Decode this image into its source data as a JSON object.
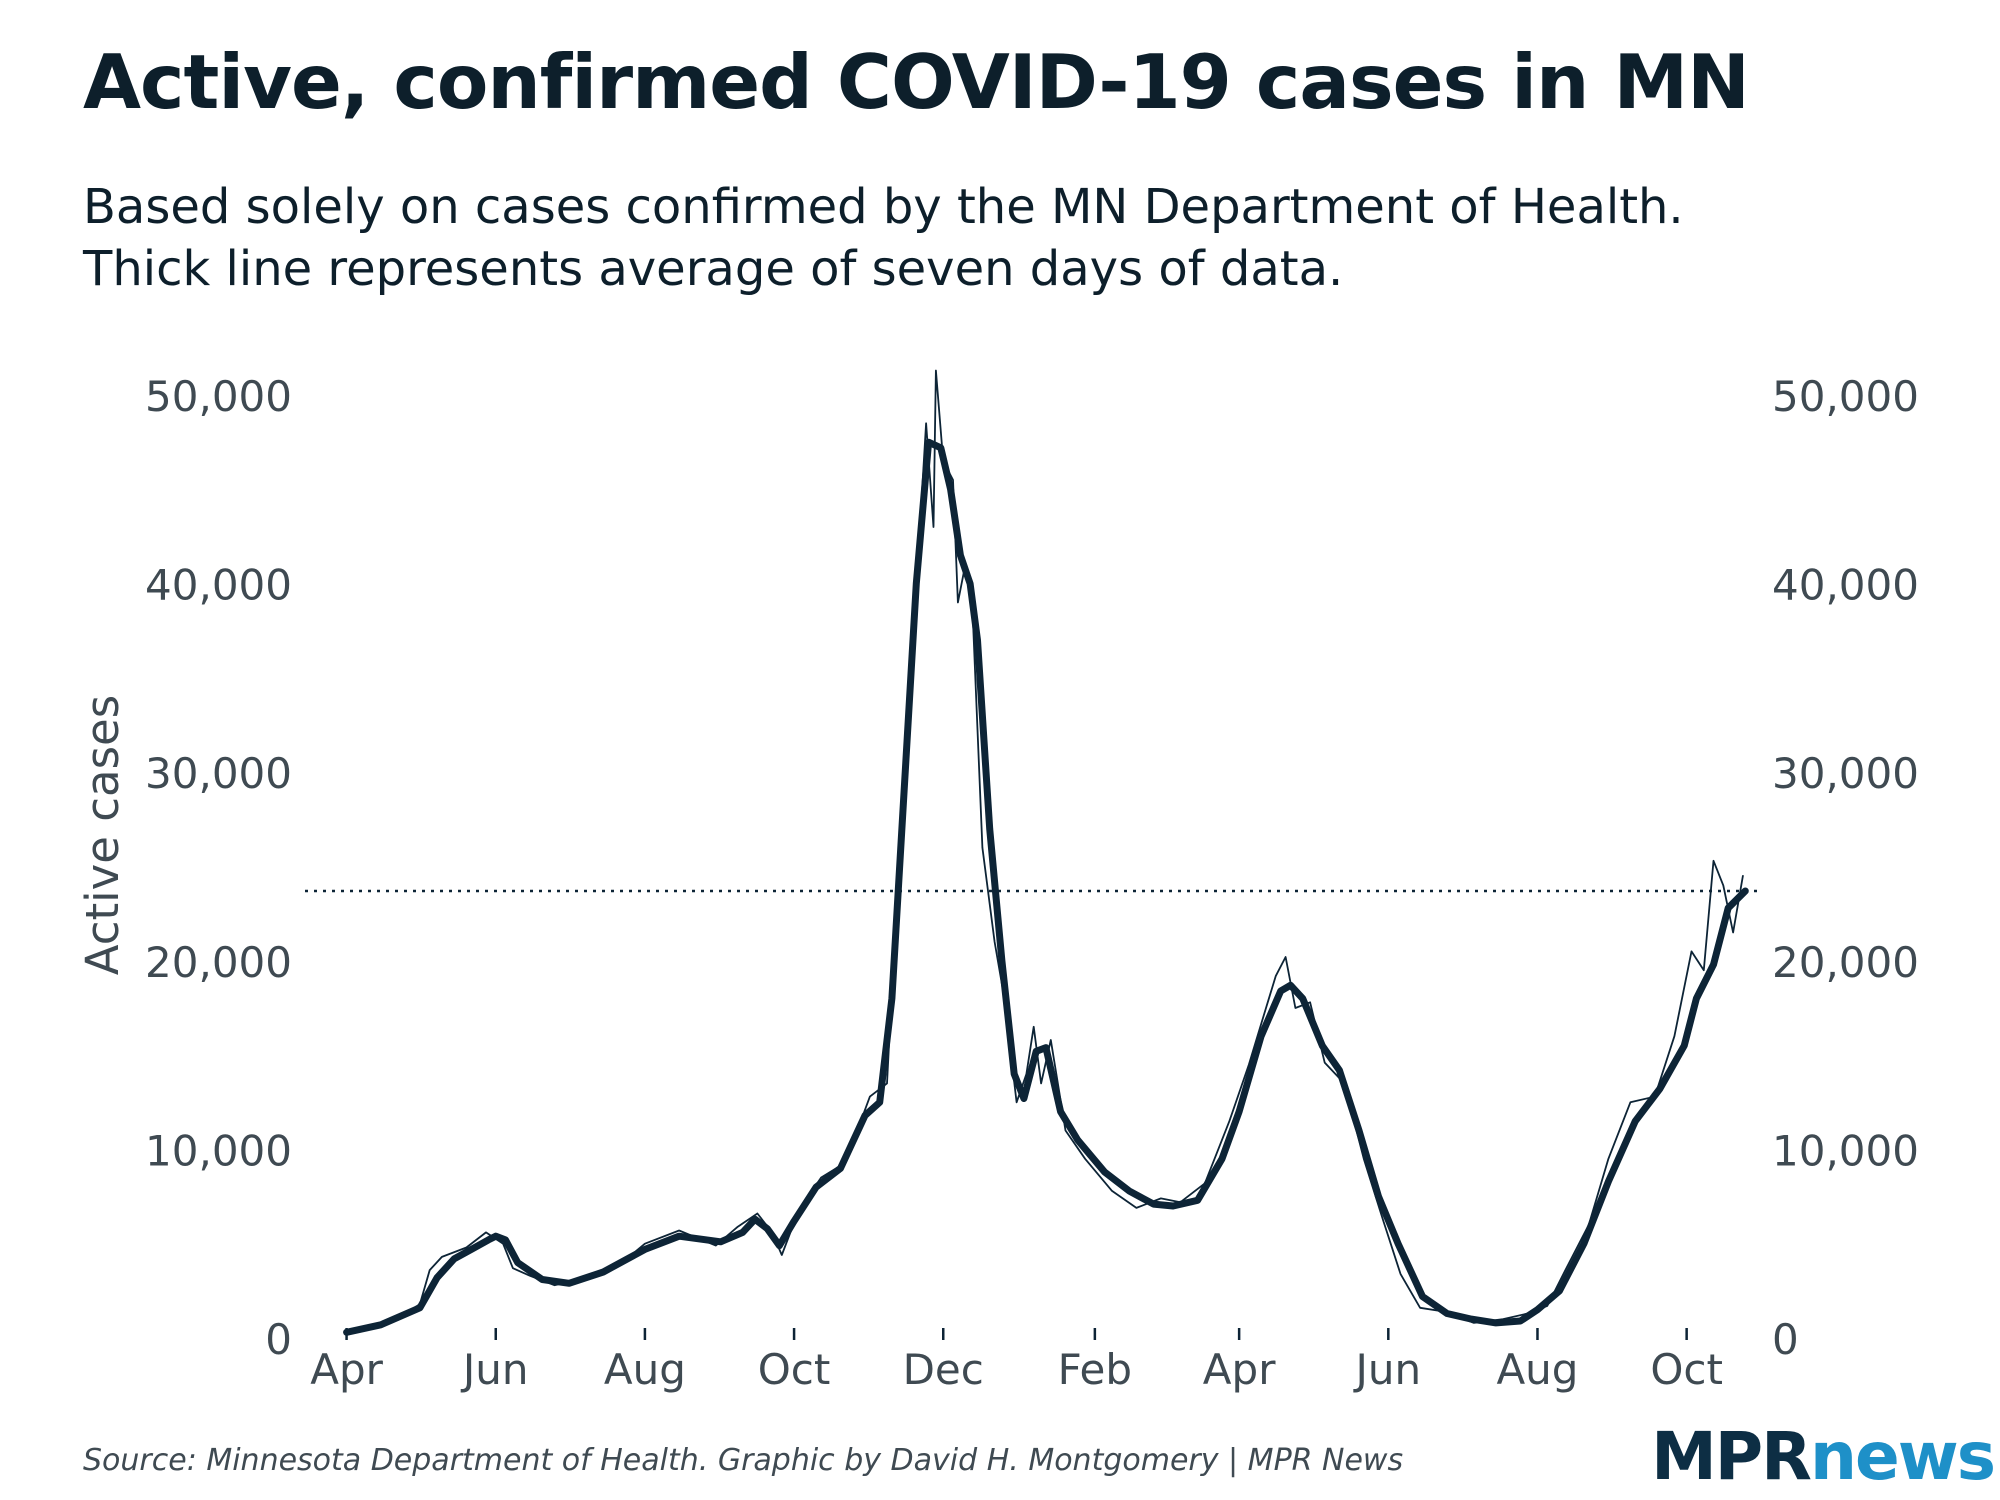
{
  "title": "Active, confirmed COVID-19 cases in MN",
  "subtitle_lines": [
    "Based solely on cases confirmed by the MN Department of Health.",
    "Thick line represents average of seven days of data."
  ],
  "source": "Source: Minnesota Department of Health. Graphic by David H. Montgomery | MPR News",
  "logo": {
    "part1": "MPR",
    "part2": "news",
    "color_part1": "#0d2e44",
    "color_part2": "#1e90c8"
  },
  "colors": {
    "line": "#0d2436",
    "text": "#0d1f2b",
    "tick_text": "#3f4a52"
  },
  "chart_data": {
    "type": "line",
    "ylabel": "Active cases",
    "ylim": [
      0,
      50000
    ],
    "yticks": [
      0,
      10000,
      20000,
      30000,
      40000,
      50000
    ],
    "ytick_labels": [
      "0",
      "10,000",
      "20,000",
      "30,000",
      "40,000",
      "50,000"
    ],
    "y_axis_sides": "both",
    "x_tick_positions": [
      "2020-04-01",
      "2020-06-01",
      "2020-08-01",
      "2020-10-01",
      "2020-12-01",
      "2021-02-01",
      "2021-04-01",
      "2021-06-01",
      "2021-08-01",
      "2021-10-01"
    ],
    "x_tick_labels": [
      "Apr",
      "Jun",
      "Aug",
      "Oct",
      "Dec",
      "Feb",
      "Apr",
      "Jun",
      "Aug",
      "Oct"
    ],
    "xlim": [
      "2020-03-15",
      "2021-10-31"
    ],
    "reference_line": {
      "y": 23700,
      "style": "dotted"
    },
    "grid": false,
    "series": [
      {
        "style": "thick",
        "points": [
          [
            "2020-04-01",
            300
          ],
          [
            "2020-04-15",
            700
          ],
          [
            "2020-05-01",
            1600
          ],
          [
            "2020-05-08",
            3200
          ],
          [
            "2020-05-15",
            4200
          ],
          [
            "2020-05-22",
            4700
          ],
          [
            "2020-05-29",
            5200
          ],
          [
            "2020-06-01",
            5400
          ],
          [
            "2020-06-05",
            5200
          ],
          [
            "2020-06-10",
            4000
          ],
          [
            "2020-06-20",
            3100
          ],
          [
            "2020-07-01",
            2900
          ],
          [
            "2020-07-15",
            3500
          ],
          [
            "2020-08-01",
            4700
          ],
          [
            "2020-08-15",
            5400
          ],
          [
            "2020-09-01",
            5100
          ],
          [
            "2020-09-10",
            5600
          ],
          [
            "2020-09-15",
            6300
          ],
          [
            "2020-09-20",
            5800
          ],
          [
            "2020-09-25",
            4900
          ],
          [
            "2020-10-01",
            6200
          ],
          [
            "2020-10-10",
            8000
          ],
          [
            "2020-10-20",
            9000
          ],
          [
            "2020-10-30",
            11800
          ],
          [
            "2020-11-05",
            12500
          ],
          [
            "2020-11-10",
            18000
          ],
          [
            "2020-11-15",
            29000
          ],
          [
            "2020-11-20",
            40000
          ],
          [
            "2020-11-25",
            47500
          ],
          [
            "2020-11-30",
            47200
          ],
          [
            "2020-12-04",
            45000
          ],
          [
            "2020-12-08",
            41500
          ],
          [
            "2020-12-12",
            40000
          ],
          [
            "2020-12-15",
            37000
          ],
          [
            "2020-12-20",
            27000
          ],
          [
            "2020-12-25",
            20000
          ],
          [
            "2020-12-30",
            14000
          ],
          [
            "2021-01-03",
            12700
          ],
          [
            "2021-01-08",
            15200
          ],
          [
            "2021-01-12",
            15400
          ],
          [
            "2021-01-18",
            12000
          ],
          [
            "2021-01-25",
            10500
          ],
          [
            "2021-02-05",
            8800
          ],
          [
            "2021-02-15",
            7800
          ],
          [
            "2021-02-25",
            7100
          ],
          [
            "2021-03-05",
            7000
          ],
          [
            "2021-03-15",
            7300
          ],
          [
            "2021-03-25",
            9500
          ],
          [
            "2021-04-01",
            12000
          ],
          [
            "2021-04-10",
            16000
          ],
          [
            "2021-04-18",
            18400
          ],
          [
            "2021-04-22",
            18700
          ],
          [
            "2021-04-27",
            18000
          ],
          [
            "2021-05-05",
            15500
          ],
          [
            "2021-05-12",
            14200
          ],
          [
            "2021-05-20",
            11000
          ],
          [
            "2021-05-28",
            7500
          ],
          [
            "2021-06-05",
            5000
          ],
          [
            "2021-06-15",
            2200
          ],
          [
            "2021-06-25",
            1300
          ],
          [
            "2021-07-05",
            1000
          ],
          [
            "2021-07-15",
            800
          ],
          [
            "2021-07-25",
            900
          ],
          [
            "2021-08-01",
            1500
          ],
          [
            "2021-08-10",
            2500
          ],
          [
            "2021-08-20",
            5000
          ],
          [
            "2021-08-30",
            8300
          ],
          [
            "2021-09-10",
            11500
          ],
          [
            "2021-09-20",
            13200
          ],
          [
            "2021-09-30",
            15500
          ],
          [
            "2021-10-05",
            18000
          ],
          [
            "2021-10-12",
            19800
          ],
          [
            "2021-10-18",
            22800
          ],
          [
            "2021-10-25",
            23700
          ]
        ]
      },
      {
        "style": "thin",
        "points": [
          [
            "2020-04-01",
            400
          ],
          [
            "2020-04-20",
            900
          ],
          [
            "2020-05-01",
            1800
          ],
          [
            "2020-05-05",
            3600
          ],
          [
            "2020-05-10",
            4300
          ],
          [
            "2020-05-20",
            4800
          ],
          [
            "2020-05-28",
            5600
          ],
          [
            "2020-06-04",
            5000
          ],
          [
            "2020-06-08",
            3700
          ],
          [
            "2020-06-15",
            3300
          ],
          [
            "2020-06-25",
            2800
          ],
          [
            "2020-07-05",
            3100
          ],
          [
            "2020-07-20",
            3700
          ],
          [
            "2020-08-01",
            5000
          ],
          [
            "2020-08-15",
            5700
          ],
          [
            "2020-08-30",
            4900
          ],
          [
            "2020-09-08",
            5900
          ],
          [
            "2020-09-16",
            6600
          ],
          [
            "2020-09-22",
            5600
          ],
          [
            "2020-09-26",
            4400
          ],
          [
            "2020-10-03",
            6800
          ],
          [
            "2020-10-12",
            8500
          ],
          [
            "2020-10-22",
            9300
          ],
          [
            "2020-11-01",
            12800
          ],
          [
            "2020-11-08",
            13500
          ],
          [
            "2020-11-13",
            26000
          ],
          [
            "2020-11-17",
            33000
          ],
          [
            "2020-11-21",
            42000
          ],
          [
            "2020-11-24",
            48500
          ],
          [
            "2020-11-27",
            43000
          ],
          [
            "2020-11-28",
            51300
          ],
          [
            "2020-12-01",
            46500
          ],
          [
            "2020-12-05",
            45500
          ],
          [
            "2020-12-07",
            39000
          ],
          [
            "2020-12-10",
            41000
          ],
          [
            "2020-12-13",
            38500
          ],
          [
            "2020-12-17",
            26000
          ],
          [
            "2020-12-22",
            21000
          ],
          [
            "2020-12-26",
            18000
          ],
          [
            "2020-12-31",
            12500
          ],
          [
            "2021-01-04",
            14000
          ],
          [
            "2021-01-07",
            16500
          ],
          [
            "2021-01-10",
            13500
          ],
          [
            "2021-01-14",
            15800
          ],
          [
            "2021-01-20",
            11000
          ],
          [
            "2021-01-28",
            9500
          ],
          [
            "2021-02-08",
            7800
          ],
          [
            "2021-02-18",
            6900
          ],
          [
            "2021-02-28",
            7400
          ],
          [
            "2021-03-08",
            7200
          ],
          [
            "2021-03-18",
            8200
          ],
          [
            "2021-03-28",
            11500
          ],
          [
            "2021-04-05",
            14500
          ],
          [
            "2021-04-12",
            17500
          ],
          [
            "2021-04-16",
            19200
          ],
          [
            "2021-04-20",
            20200
          ],
          [
            "2021-04-24",
            17500
          ],
          [
            "2021-04-30",
            17800
          ],
          [
            "2021-05-06",
            14600
          ],
          [
            "2021-05-14",
            13500
          ],
          [
            "2021-05-22",
            9500
          ],
          [
            "2021-05-30",
            6200
          ],
          [
            "2021-06-06",
            3400
          ],
          [
            "2021-06-14",
            1600
          ],
          [
            "2021-06-24",
            1400
          ],
          [
            "2021-07-06",
            800
          ],
          [
            "2021-07-18",
            1000
          ],
          [
            "2021-07-28",
            1300
          ],
          [
            "2021-08-05",
            1700
          ],
          [
            "2021-08-12",
            3500
          ],
          [
            "2021-08-22",
            6000
          ],
          [
            "2021-08-30",
            9500
          ],
          [
            "2021-09-08",
            12500
          ],
          [
            "2021-09-18",
            12800
          ],
          [
            "2021-09-26",
            16000
          ],
          [
            "2021-10-03",
            20500
          ],
          [
            "2021-10-08",
            19500
          ],
          [
            "2021-10-12",
            25300
          ],
          [
            "2021-10-16",
            24000
          ],
          [
            "2021-10-20",
            21500
          ],
          [
            "2021-10-24",
            24500
          ]
        ]
      }
    ]
  }
}
